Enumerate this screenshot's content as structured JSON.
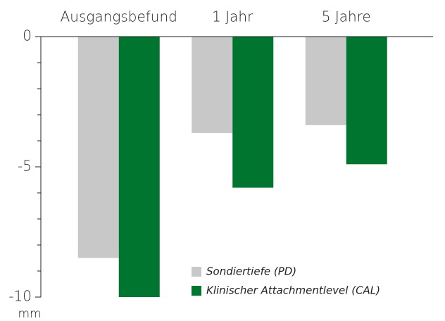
{
  "chart_data": {
    "type": "bar",
    "categories": [
      "Ausgangsbefund",
      "1 Jahr",
      "5 Jahre"
    ],
    "series": [
      {
        "name": "Sondiertiefe (PD)",
        "color": "#c8c8c8",
        "values": [
          -8.5,
          -3.7,
          -3.4
        ]
      },
      {
        "name": "Klinischer Attachmentlevel (CAL)",
        "color": "#00752f",
        "values": [
          -10,
          -5.8,
          -4.9
        ]
      }
    ],
    "ylim": [
      0,
      -10
    ],
    "yticks": [
      0,
      -5,
      -10
    ],
    "yminorticks": [
      -1,
      -2,
      -3,
      -4,
      -6,
      -7,
      -8,
      -9
    ],
    "ylabel": "mm"
  }
}
